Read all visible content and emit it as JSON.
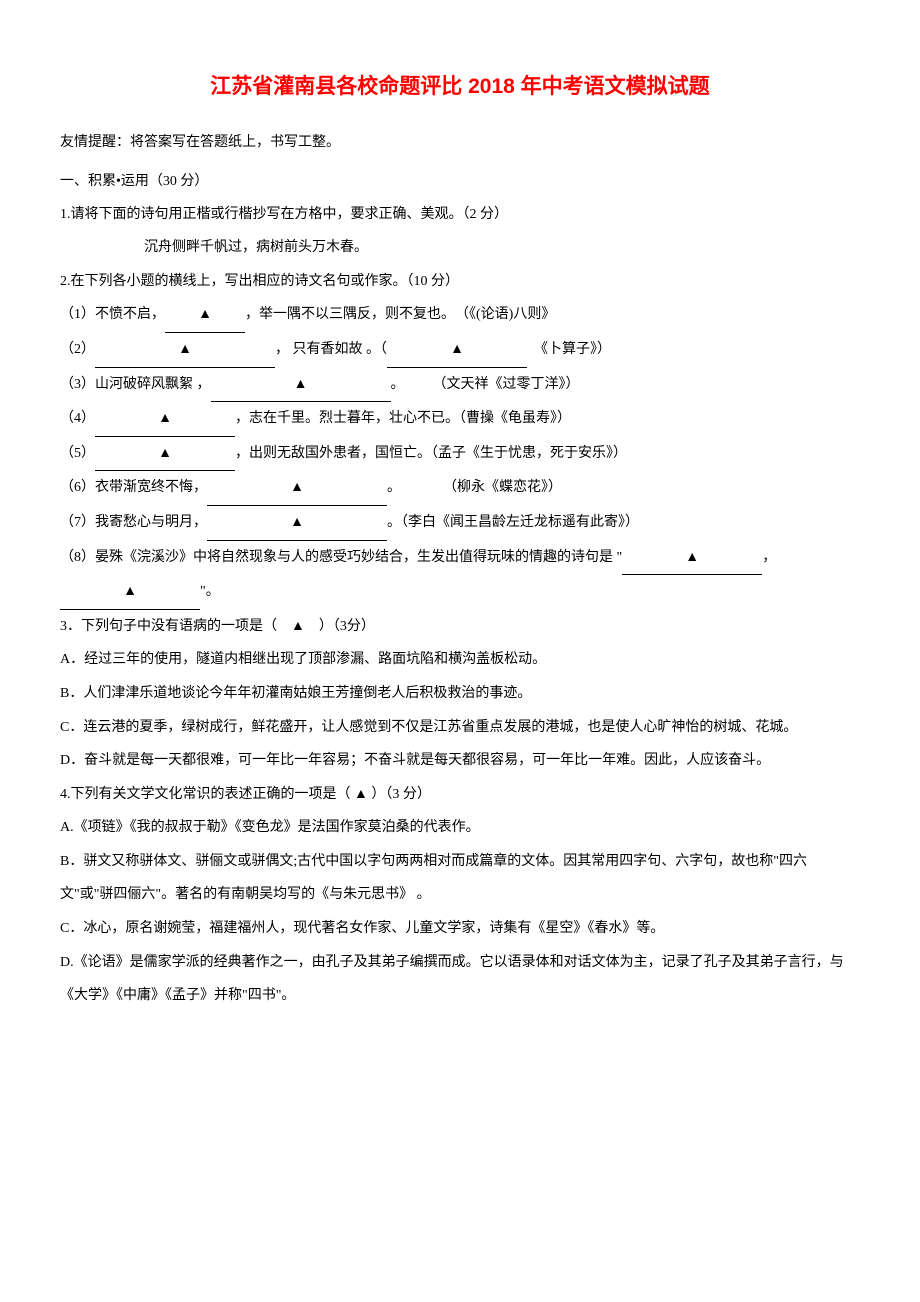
{
  "title": "江苏省灌南县各校命题评比 2018 年中考语文模拟试题",
  "title_color": "#ff0000",
  "title_fontsize": 21,
  "body_fontsize": 14,
  "body_color": "#000000",
  "background_color": "#ffffff",
  "line_height": 2.4,
  "hint": "友情提醒：将答案写在答题纸上，书写工整。",
  "section1": {
    "header": "一、积累•运用（30 分）",
    "q1": {
      "text": "1.请将下面的诗句用正楷或行楷抄写在方格中，要求正确、美观。（2 分）",
      "poem": "沉舟侧畔千帆过，病树前头万木春。"
    },
    "q2": {
      "text": "2.在下列各小题的横线上，写出相应的诗文名句或作家。（10 分）",
      "items": [
        {
          "num": "（1）",
          "pre": "不愤不启，",
          "blank_mark": "▲",
          "post": "，举一隅不以三隅反，则不复也。",
          "source": "（《(论语)八则》"
        },
        {
          "num": "（2）",
          "blank_mark": "▲",
          "mid": "， 只有香如故 。（",
          "blank_mark2": "▲",
          "source": "《卜算子》）"
        },
        {
          "num": "（3）",
          "pre": "山河破碎风飘絮 ，",
          "blank_mark": "▲",
          "post": "。",
          "source": "（文天祥《过零丁洋》）"
        },
        {
          "num": "（4）",
          "blank_mark": "▲",
          "post": "，志在千里。烈士暮年，壮心不已。（曹操《龟虽寿》）"
        },
        {
          "num": "（5）",
          "blank_mark": "▲",
          "post": "，出则无敌国外患者，国恒亡。（孟子《生于忧患，死于安乐》）"
        },
        {
          "num": "（6）",
          "pre": "衣带渐宽终不悔，",
          "blank_mark": "▲",
          "post": "。",
          "source": "（柳永《蝶恋花》）"
        },
        {
          "num": "（7）",
          "pre": "我寄愁心与明月，",
          "blank_mark": "▲",
          "post": "。（李白《闻王昌龄左迁龙标遥有此寄》）"
        },
        {
          "num": "（8）",
          "text": "晏殊《浣溪沙》中将自然现象与人的感受巧妙结合，生发出值得玩味的情趣的诗句是  \"",
          "blank_mark": "▲",
          "mid": "，",
          "blank_mark2": "▲",
          "end": "\"。"
        }
      ]
    },
    "q3": {
      "text": "3．下列句子中没有语病的一项是（　▲　）（3分）",
      "options": [
        "A．经过三年的使用，隧道内相继出现了顶部渗漏、路面坑陷和横沟盖板松动。",
        "B．人们津津乐道地谈论今年年初灌南姑娘王芳撞倒老人后积极救治的事迹。",
        "C．连云港的夏季，绿树成行，鲜花盛开，让人感觉到不仅是江苏省重点发展的港城，也是使人心旷神怡的树城、花城。",
        "D．奋斗就是每一天都很难，可一年比一年容易；不奋斗就是每天都很容易，可一年比一年难。因此，人应该奋斗。"
      ]
    },
    "q4": {
      "text": "4.下列有关文学文化常识的表述正确的一项是（ ▲ ）（3 分）",
      "options": [
        "A.《项链》《我的叔叔于勒》《变色龙》是法国作家莫泊桑的代表作。",
        "B．骈文又称骈体文、骈俪文或骈偶文;古代中国以字句两两相对而成篇章的文体。因其常用四字句、六字句，故也称\"四六文\"或\"骈四俪六\"。著名的有南朝吴均写的《与朱元思书》 。",
        "C．冰心，原名谢婉莹，福建福州人，现代著名女作家、儿童文学家，诗集有《星空》《春水》等。",
        "D.《论语》是儒家学派的经典著作之一，由孔子及其弟子编撰而成。它以语录体和对话文体为主，记录了孔子及其弟子言行，与《大学》《中庸》《孟子》并称\"四书\"。"
      ]
    }
  }
}
